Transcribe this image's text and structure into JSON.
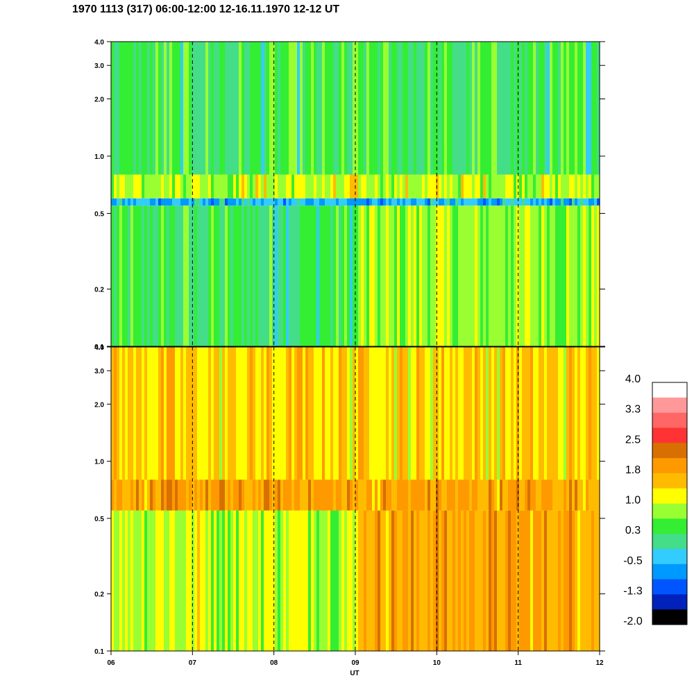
{
  "header": {
    "title": "1970 1113 (317) 06:00-12:00 12-16.11.1970  12-12 UT"
  },
  "chart_data": [
    {
      "type": "heatmap",
      "panel": "top",
      "x_range": [
        "06",
        "12"
      ],
      "y_scale": "log",
      "ylim": [
        0.1,
        4.0
      ],
      "y_ticks": [
        "0.1",
        "0.2",
        "0.5",
        "1.0",
        "2.0",
        "3.0",
        "4.0"
      ],
      "x_ticks": [
        "06",
        "07",
        "08",
        "09",
        "10",
        "11",
        "12"
      ],
      "dashed_hour_lines": [
        "07",
        "08",
        "09",
        "10",
        "11"
      ],
      "y_bands": [
        {
          "from": 0.1,
          "to": 0.55,
          "level": 0.3
        },
        {
          "from": 0.55,
          "to": 0.6,
          "level": -0.5
        },
        {
          "from": 0.6,
          "to": 0.8,
          "level": 1.0
        },
        {
          "from": 0.8,
          "to": 4.0,
          "level": 0.3
        }
      ]
    },
    {
      "type": "heatmap",
      "panel": "bottom",
      "x_range": [
        "06",
        "12"
      ],
      "y_scale": "log",
      "ylim": [
        0.1,
        4.0
      ],
      "y_ticks": [
        "0.1",
        "0.2",
        "0.5",
        "1.0",
        "2.0",
        "3.0",
        "4.0"
      ],
      "x_ticks": [
        "06",
        "07",
        "08",
        "09",
        "10",
        "11",
        "12"
      ],
      "xlabel": "UT",
      "dashed_hour_lines": [
        "07",
        "08",
        "09",
        "10",
        "11"
      ],
      "y_bands": [
        {
          "from": 0.1,
          "to": 0.55,
          "level": 1.0
        },
        {
          "from": 0.55,
          "to": 0.8,
          "level": 1.8
        },
        {
          "from": 0.8,
          "to": 4.0,
          "level": 1.4
        }
      ]
    }
  ],
  "colorbar": {
    "labels": [
      "4.0",
      "3.3",
      "2.5",
      "1.8",
      "1.0",
      "0.3",
      "-0.5",
      "-1.3",
      "-2.0"
    ],
    "colors": [
      "#ffffff",
      "#ff9999",
      "#ff6666",
      "#ff3333",
      "#d77000",
      "#ff9900",
      "#ffbb00",
      "#ffff00",
      "#99ff33",
      "#33ee33",
      "#44dd88",
      "#33ccff",
      "#0099ff",
      "#0055ff",
      "#0022bb",
      "#000000"
    ]
  }
}
